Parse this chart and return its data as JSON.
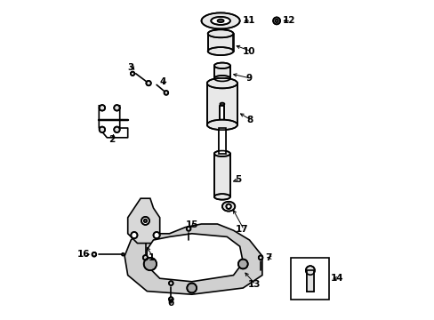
{
  "background": "#ffffff",
  "line_color": "#000000",
  "line_width": 1.2
}
